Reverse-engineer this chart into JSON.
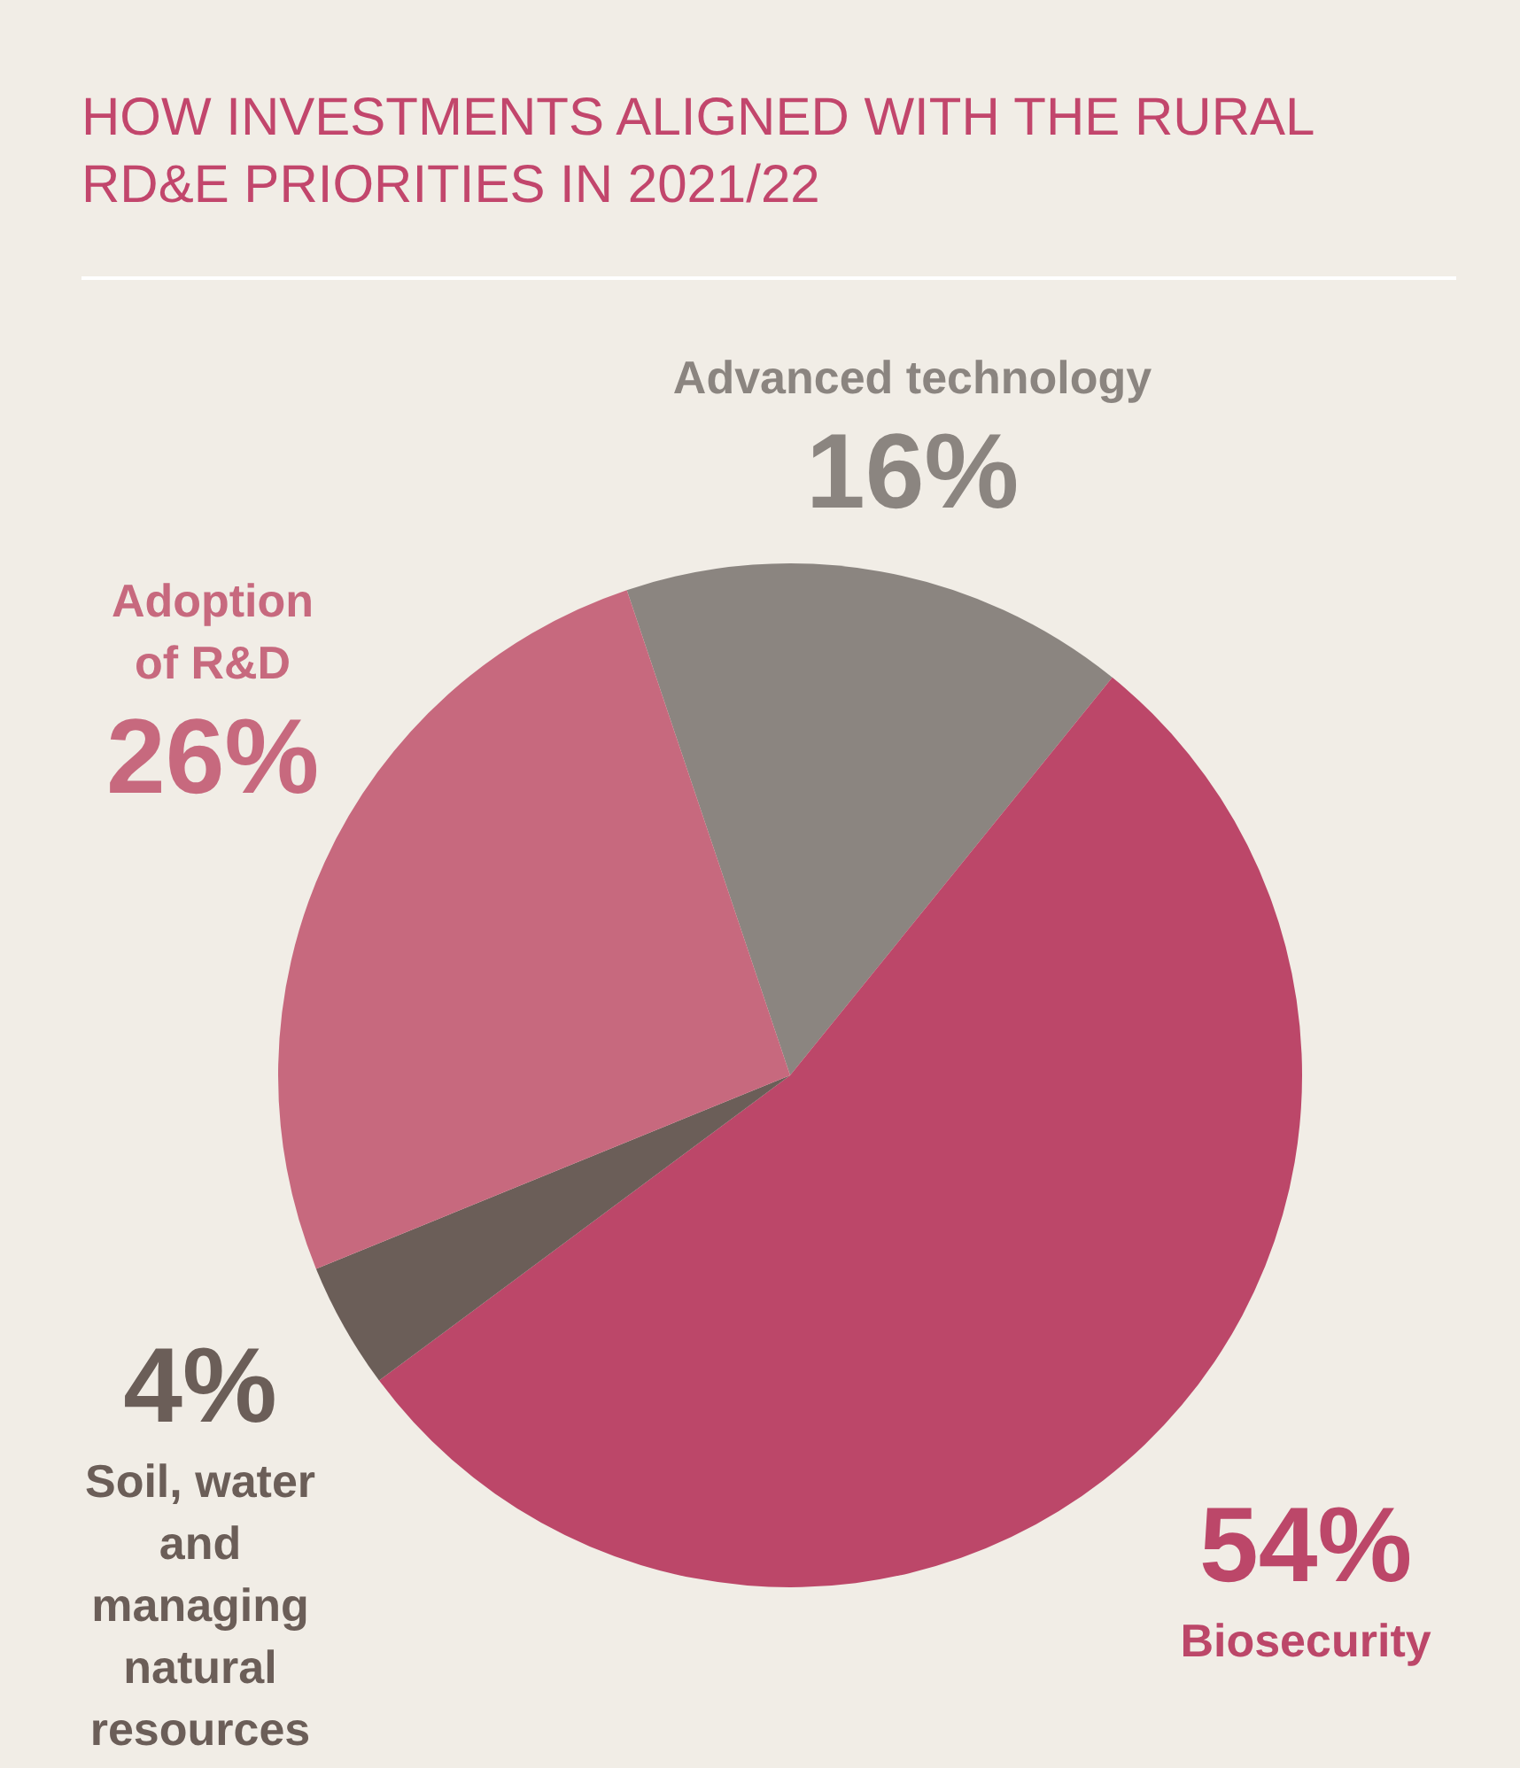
{
  "chart_data": {
    "type": "pie",
    "title": "HOW INVESTMENTS ALIGNED WITH THE RURAL RD&E PRIORITIES IN 2021/22",
    "categories": [
      "Advanced technology",
      "Biosecurity",
      "Soil, water and managing natural resources",
      "Adoption of R&D"
    ],
    "values": [
      16,
      54,
      4,
      26
    ],
    "colors": [
      "#8b8580",
      "#bc4769",
      "#6b5e58",
      "#c7697e"
    ],
    "value_labels": [
      "16%",
      "54%",
      "4%",
      "26%"
    ],
    "legend": false
  }
}
